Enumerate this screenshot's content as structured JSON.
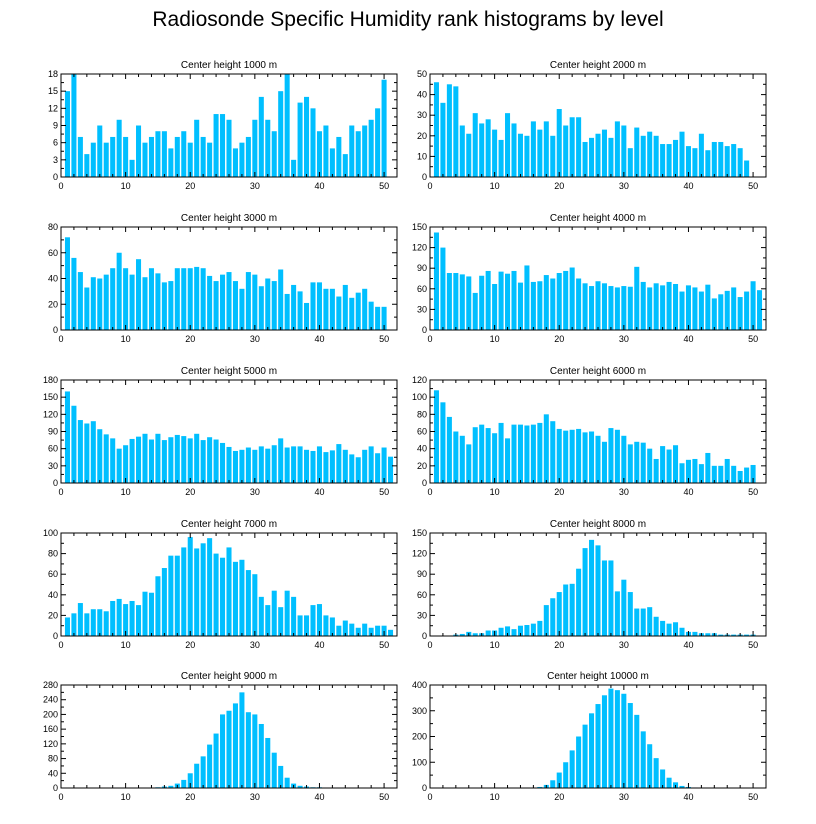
{
  "title": "Radiosonde Specific Humidity rank histograms by level",
  "colors": {
    "bar": "#00bfff",
    "axis": "#000000"
  },
  "chart_data": [
    {
      "type": "bar",
      "title": "Center height 1000 m",
      "xlim": [
        0,
        52
      ],
      "ylim": [
        0,
        18
      ],
      "xticks": [
        0,
        10,
        20,
        30,
        40,
        50
      ],
      "yticks": [
        0,
        3,
        6,
        9,
        12,
        15,
        18
      ],
      "values": [
        15,
        18,
        7,
        4,
        6,
        9,
        6,
        7,
        10,
        7,
        3,
        9,
        6,
        7,
        8,
        8,
        5,
        7,
        8,
        6,
        10,
        7,
        6,
        11,
        11,
        10,
        5,
        6,
        7,
        10,
        14,
        10,
        8,
        15,
        18,
        3,
        13,
        14,
        12,
        8,
        9,
        5,
        7,
        4,
        9,
        8,
        9,
        10,
        12,
        17,
        0
      ]
    },
    {
      "type": "bar",
      "title": "Center height 2000 m",
      "xlim": [
        0,
        52
      ],
      "ylim": [
        0,
        50
      ],
      "xticks": [
        0,
        10,
        20,
        30,
        40,
        50
      ],
      "yticks": [
        0,
        10,
        20,
        30,
        40,
        50
      ],
      "values": [
        46,
        36,
        45,
        44,
        25,
        21,
        31,
        26,
        28,
        23,
        18,
        31,
        26,
        21,
        20,
        27,
        23,
        27,
        20,
        33,
        25,
        29,
        29,
        17,
        19,
        21,
        23,
        19,
        27,
        25,
        14,
        24,
        20,
        22,
        20,
        16,
        16,
        18,
        22,
        15,
        14,
        21,
        13,
        17,
        17,
        15,
        16,
        14,
        8,
        0,
        0
      ]
    },
    {
      "type": "bar",
      "title": "Center height 3000 m",
      "xlim": [
        0,
        52
      ],
      "ylim": [
        0,
        80
      ],
      "xticks": [
        0,
        10,
        20,
        30,
        40,
        50
      ],
      "yticks": [
        0,
        20,
        40,
        60,
        80
      ],
      "values": [
        72,
        56,
        45,
        33,
        41,
        40,
        43,
        48,
        60,
        48,
        43,
        55,
        41,
        48,
        44,
        37,
        38,
        48,
        48,
        48,
        49,
        48,
        42,
        38,
        43,
        45,
        38,
        32,
        45,
        43,
        34,
        40,
        38,
        47,
        28,
        35,
        30,
        21,
        37,
        37,
        32,
        32,
        26,
        35,
        25,
        29,
        32,
        22,
        18,
        18,
        0
      ]
    },
    {
      "type": "bar",
      "title": "Center height 4000 m",
      "xlim": [
        0,
        52
      ],
      "ylim": [
        0,
        150
      ],
      "xticks": [
        0,
        10,
        20,
        30,
        40,
        50
      ],
      "yticks": [
        0,
        30,
        60,
        90,
        120,
        150
      ],
      "values": [
        142,
        120,
        83,
        83,
        81,
        78,
        54,
        79,
        86,
        67,
        85,
        82,
        86,
        69,
        94,
        70,
        71,
        80,
        75,
        83,
        86,
        91,
        75,
        68,
        64,
        71,
        68,
        64,
        62,
        64,
        63,
        92,
        70,
        62,
        68,
        65,
        70,
        67,
        56,
        65,
        62,
        56,
        66,
        46,
        52,
        57,
        62,
        48,
        56,
        71,
        58
      ]
    },
    {
      "type": "bar",
      "title": "Center height 5000 m",
      "xlim": [
        0,
        52
      ],
      "ylim": [
        0,
        180
      ],
      "xticks": [
        0,
        10,
        20,
        30,
        40,
        50
      ],
      "yticks": [
        0,
        30,
        60,
        90,
        120,
        150,
        180
      ],
      "values": [
        160,
        135,
        110,
        104,
        108,
        94,
        85,
        78,
        60,
        66,
        77,
        81,
        86,
        76,
        86,
        75,
        80,
        84,
        82,
        78,
        86,
        75,
        80,
        76,
        70,
        63,
        56,
        58,
        62,
        58,
        64,
        60,
        66,
        78,
        62,
        64,
        64,
        58,
        56,
        64,
        54,
        57,
        68,
        58,
        50,
        45,
        58,
        64,
        52,
        62,
        46
      ]
    },
    {
      "type": "bar",
      "title": "Center height 6000 m",
      "xlim": [
        0,
        52
      ],
      "ylim": [
        0,
        120
      ],
      "xticks": [
        0,
        10,
        20,
        30,
        40,
        50
      ],
      "yticks": [
        0,
        20,
        40,
        60,
        80,
        100,
        120
      ],
      "values": [
        108,
        94,
        77,
        60,
        55,
        45,
        65,
        68,
        64,
        58,
        70,
        52,
        68,
        68,
        67,
        68,
        70,
        80,
        72,
        63,
        61,
        62,
        63,
        59,
        60,
        55,
        48,
        64,
        62,
        55,
        45,
        48,
        47,
        40,
        28,
        43,
        39,
        44,
        23,
        27,
        28,
        22,
        35,
        20,
        20,
        28,
        20,
        14,
        18,
        21,
        0
      ]
    },
    {
      "type": "bar",
      "title": "Center height 7000 m",
      "xlim": [
        0,
        52
      ],
      "ylim": [
        0,
        100
      ],
      "xticks": [
        0,
        10,
        20,
        30,
        40,
        50
      ],
      "yticks": [
        0,
        20,
        40,
        60,
        80,
        100
      ],
      "values": [
        18,
        22,
        32,
        22,
        26,
        26,
        24,
        34,
        36,
        31,
        34,
        30,
        43,
        42,
        58,
        66,
        78,
        78,
        86,
        96,
        85,
        90,
        95,
        80,
        76,
        86,
        72,
        74,
        64,
        60,
        38,
        30,
        44,
        28,
        44,
        38,
        20,
        20,
        30,
        31,
        20,
        18,
        10,
        15,
        12,
        8,
        12,
        8,
        10,
        10,
        6
      ]
    },
    {
      "type": "bar",
      "title": "Center height 8000 m",
      "xlim": [
        0,
        52
      ],
      "ylim": [
        0,
        150
      ],
      "xticks": [
        0,
        10,
        20,
        30,
        40,
        50
      ],
      "yticks": [
        0,
        30,
        60,
        90,
        120,
        150
      ],
      "values": [
        0,
        0,
        0,
        2,
        3,
        6,
        4,
        4,
        8,
        8,
        12,
        14,
        10,
        15,
        16,
        18,
        22,
        45,
        55,
        64,
        75,
        76,
        98,
        128,
        140,
        132,
        110,
        110,
        65,
        82,
        64,
        40,
        40,
        42,
        28,
        22,
        18,
        20,
        12,
        6,
        6,
        4,
        4,
        4,
        2,
        2,
        2,
        2,
        2,
        2,
        0
      ]
    },
    {
      "type": "bar",
      "title": "Center height 9000 m",
      "xlim": [
        0,
        52
      ],
      "ylim": [
        0,
        280
      ],
      "xticks": [
        0,
        10,
        20,
        30,
        40,
        50
      ],
      "yticks": [
        0,
        40,
        80,
        120,
        160,
        200,
        240,
        280
      ],
      "values": [
        0,
        0,
        0,
        0,
        0,
        0,
        0,
        0,
        0,
        0,
        0,
        0,
        0,
        0,
        2,
        4,
        6,
        12,
        22,
        40,
        66,
        86,
        118,
        148,
        200,
        210,
        230,
        260,
        206,
        200,
        174,
        136,
        96,
        60,
        28,
        12,
        6,
        4,
        2,
        2,
        0,
        0,
        0,
        0,
        0,
        0,
        0,
        0,
        0,
        0,
        0
      ]
    },
    {
      "type": "bar",
      "title": "Center height 10000 m",
      "xlim": [
        0,
        52
      ],
      "ylim": [
        0,
        400
      ],
      "xticks": [
        0,
        10,
        20,
        30,
        40,
        50
      ],
      "yticks": [
        0,
        100,
        200,
        300,
        400
      ],
      "values": [
        0,
        0,
        0,
        0,
        0,
        0,
        0,
        0,
        0,
        0,
        0,
        0,
        0,
        0,
        0,
        0,
        4,
        12,
        30,
        60,
        100,
        146,
        200,
        246,
        290,
        326,
        360,
        386,
        380,
        366,
        330,
        284,
        220,
        170,
        116,
        72,
        40,
        22,
        8,
        4,
        2,
        0,
        0,
        0,
        0,
        0,
        0,
        0,
        0,
        0,
        0
      ]
    }
  ]
}
